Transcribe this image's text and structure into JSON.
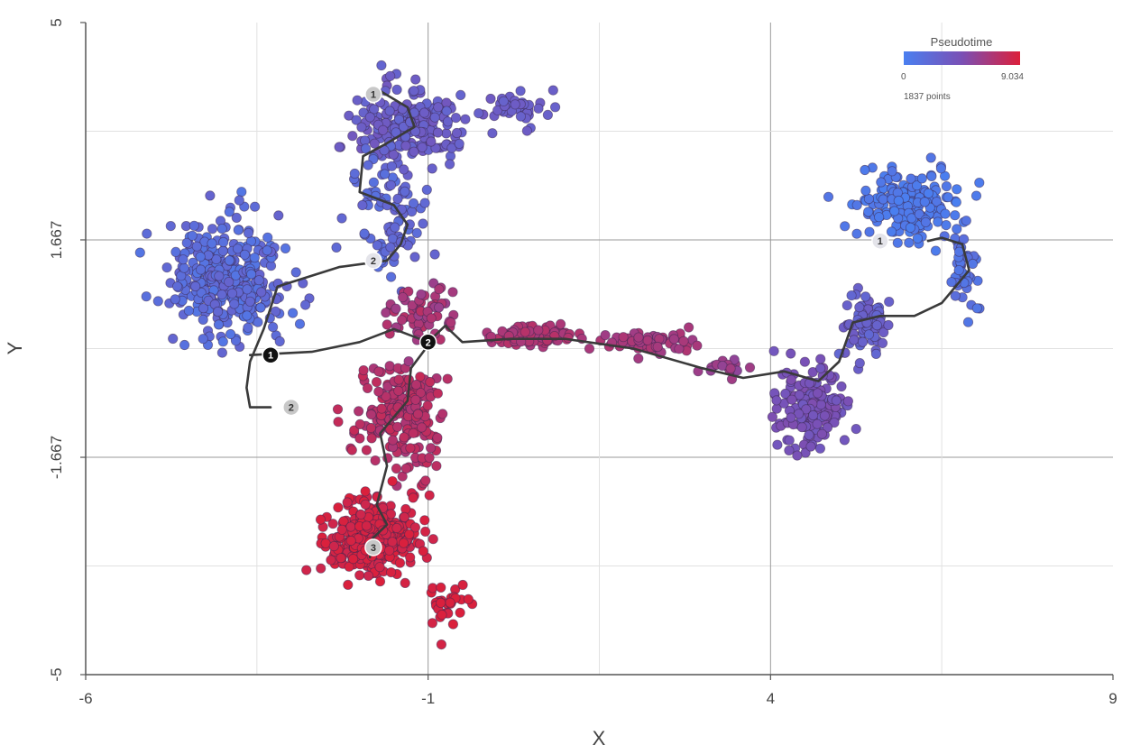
{
  "chart_data": {
    "type": "scatter",
    "title": "",
    "xlabel": "X",
    "ylabel": "Y",
    "xlim": [
      -6,
      9
    ],
    "ylim": [
      -5,
      5
    ],
    "xticks": [
      "-6",
      "-1",
      "4",
      "9"
    ],
    "yticks": [
      "5",
      "1.667",
      "-1.667",
      "-5"
    ],
    "grid": true,
    "colorbar": {
      "title": "Pseudotime",
      "min_label": "0",
      "max_label": "9.034",
      "min": 0,
      "max": 9.034,
      "colors": [
        "#4a7ff0",
        "#7a50b5",
        "#dc1f3a"
      ],
      "placement": "top-right",
      "count_label": "1837 points"
    },
    "point_count": 1837,
    "clusters": [
      {
        "center": [
          -3.9,
          1.1
        ],
        "spread": [
          0.7,
          0.75
        ],
        "n": 330,
        "pt": [
          0.8,
          2.6
        ]
      },
      {
        "center": [
          -1.3,
          3.4
        ],
        "spread": [
          0.65,
          0.45
        ],
        "n": 210,
        "pt": [
          2.4,
          3.8
        ]
      },
      {
        "center": [
          0.3,
          3.7
        ],
        "spread": [
          0.35,
          0.22
        ],
        "n": 40,
        "pt": [
          2.6,
          3.4
        ]
      },
      {
        "center": [
          -1.6,
          2.1
        ],
        "spread": [
          0.5,
          0.8
        ],
        "n": 90,
        "pt": [
          1.3,
          2.6
        ]
      },
      {
        "center": [
          -1.4,
          -1.0
        ],
        "spread": [
          0.55,
          0.7
        ],
        "n": 200,
        "pt": [
          6.8,
          8.0
        ]
      },
      {
        "center": [
          -1.8,
          -2.9
        ],
        "spread": [
          0.55,
          0.45
        ],
        "n": 340,
        "pt": [
          8.3,
          9.0
        ]
      },
      {
        "center": [
          -0.7,
          -3.9
        ],
        "spread": [
          0.2,
          0.35
        ],
        "n": 30,
        "pt": [
          8.6,
          9.0
        ]
      },
      {
        "center": [
          -1.1,
          0.5
        ],
        "spread": [
          0.5,
          0.4
        ],
        "n": 60,
        "pt": [
          6.0,
          7.5
        ]
      },
      {
        "center": [
          0.5,
          0.2
        ],
        "spread": [
          0.5,
          0.12
        ],
        "n": 90,
        "pt": [
          6.6,
          7.4
        ]
      },
      {
        "center": [
          2.2,
          0.1
        ],
        "spread": [
          0.55,
          0.15
        ],
        "n": 60,
        "pt": [
          6.2,
          7.0
        ]
      },
      {
        "center": [
          3.4,
          -0.3
        ],
        "spread": [
          0.4,
          0.12
        ],
        "n": 20,
        "pt": [
          5.5,
          6.5
        ]
      },
      {
        "center": [
          4.6,
          -0.9
        ],
        "spread": [
          0.45,
          0.5
        ],
        "n": 160,
        "pt": [
          3.6,
          4.8
        ]
      },
      {
        "center": [
          5.4,
          0.4
        ],
        "spread": [
          0.3,
          0.45
        ],
        "n": 80,
        "pt": [
          2.2,
          3.4
        ]
      },
      {
        "center": [
          6.0,
          2.2
        ],
        "spread": [
          0.6,
          0.45
        ],
        "n": 180,
        "pt": [
          0.0,
          0.9
        ]
      },
      {
        "center": [
          6.8,
          1.2
        ],
        "spread": [
          0.2,
          0.55
        ],
        "n": 47,
        "pt": [
          0.6,
          1.6
        ]
      }
    ],
    "trajectory": [
      [
        [
          -1.7,
          3.95
        ],
        [
          -1.3,
          3.7
        ],
        [
          -1.2,
          3.4
        ],
        [
          -1.6,
          3.15
        ],
        [
          -1.95,
          2.95
        ],
        [
          -2.0,
          2.4
        ],
        [
          -1.5,
          2.2
        ],
        [
          -1.3,
          1.9
        ],
        [
          -1.4,
          1.6
        ],
        [
          -1.6,
          1.35
        ],
        [
          -2.3,
          1.25
        ],
        [
          -3.2,
          0.95
        ],
        [
          -3.4,
          0.3
        ],
        [
          -3.6,
          -0.2
        ],
        [
          -3.65,
          -0.6
        ],
        [
          -3.6,
          -0.9
        ],
        [
          -3.3,
          -0.9
        ]
      ],
      [
        [
          -3.6,
          -0.1
        ],
        [
          -2.7,
          -0.05
        ],
        [
          -2.0,
          0.1
        ],
        [
          -1.5,
          0.3
        ],
        [
          -1.0,
          0.1
        ],
        [
          -0.75,
          0.35
        ],
        [
          -0.5,
          0.1
        ],
        [
          0.2,
          0.15
        ],
        [
          1.0,
          0.15
        ],
        [
          2.0,
          0.0
        ],
        [
          3.0,
          -0.3
        ],
        [
          3.6,
          -0.45
        ],
        [
          4.2,
          -0.35
        ],
        [
          4.7,
          -0.5
        ],
        [
          5.0,
          -0.2
        ],
        [
          5.2,
          0.4
        ],
        [
          5.6,
          0.5
        ],
        [
          6.1,
          0.5
        ],
        [
          6.5,
          0.7
        ],
        [
          6.9,
          1.2
        ],
        [
          6.8,
          1.6
        ],
        [
          6.5,
          1.7
        ],
        [
          6.3,
          1.65
        ]
      ],
      [
        [
          -1.0,
          0.05
        ],
        [
          -1.25,
          -0.3
        ],
        [
          -1.3,
          -0.8
        ],
        [
          -1.7,
          -1.3
        ],
        [
          -1.6,
          -1.8
        ],
        [
          -1.75,
          -2.4
        ],
        [
          -1.6,
          -2.7
        ],
        [
          -1.8,
          -2.9
        ],
        [
          -1.85,
          -3.2
        ]
      ]
    ],
    "nodes": [
      {
        "label": "1",
        "x": -1.8,
        "y": 3.9,
        "kind": "leaf"
      },
      {
        "label": "2",
        "x": -1.8,
        "y": 1.35,
        "kind": "start"
      },
      {
        "label": "1",
        "x": -3.3,
        "y": -0.1,
        "kind": "branch"
      },
      {
        "label": "2",
        "x": -3.0,
        "y": -0.9,
        "kind": "leaf"
      },
      {
        "label": "2",
        "x": -1.0,
        "y": 0.1,
        "kind": "branch"
      },
      {
        "label": "3",
        "x": -1.8,
        "y": -3.05,
        "kind": "leaf"
      },
      {
        "label": "1",
        "x": 5.6,
        "y": 1.65,
        "kind": "start"
      }
    ]
  }
}
